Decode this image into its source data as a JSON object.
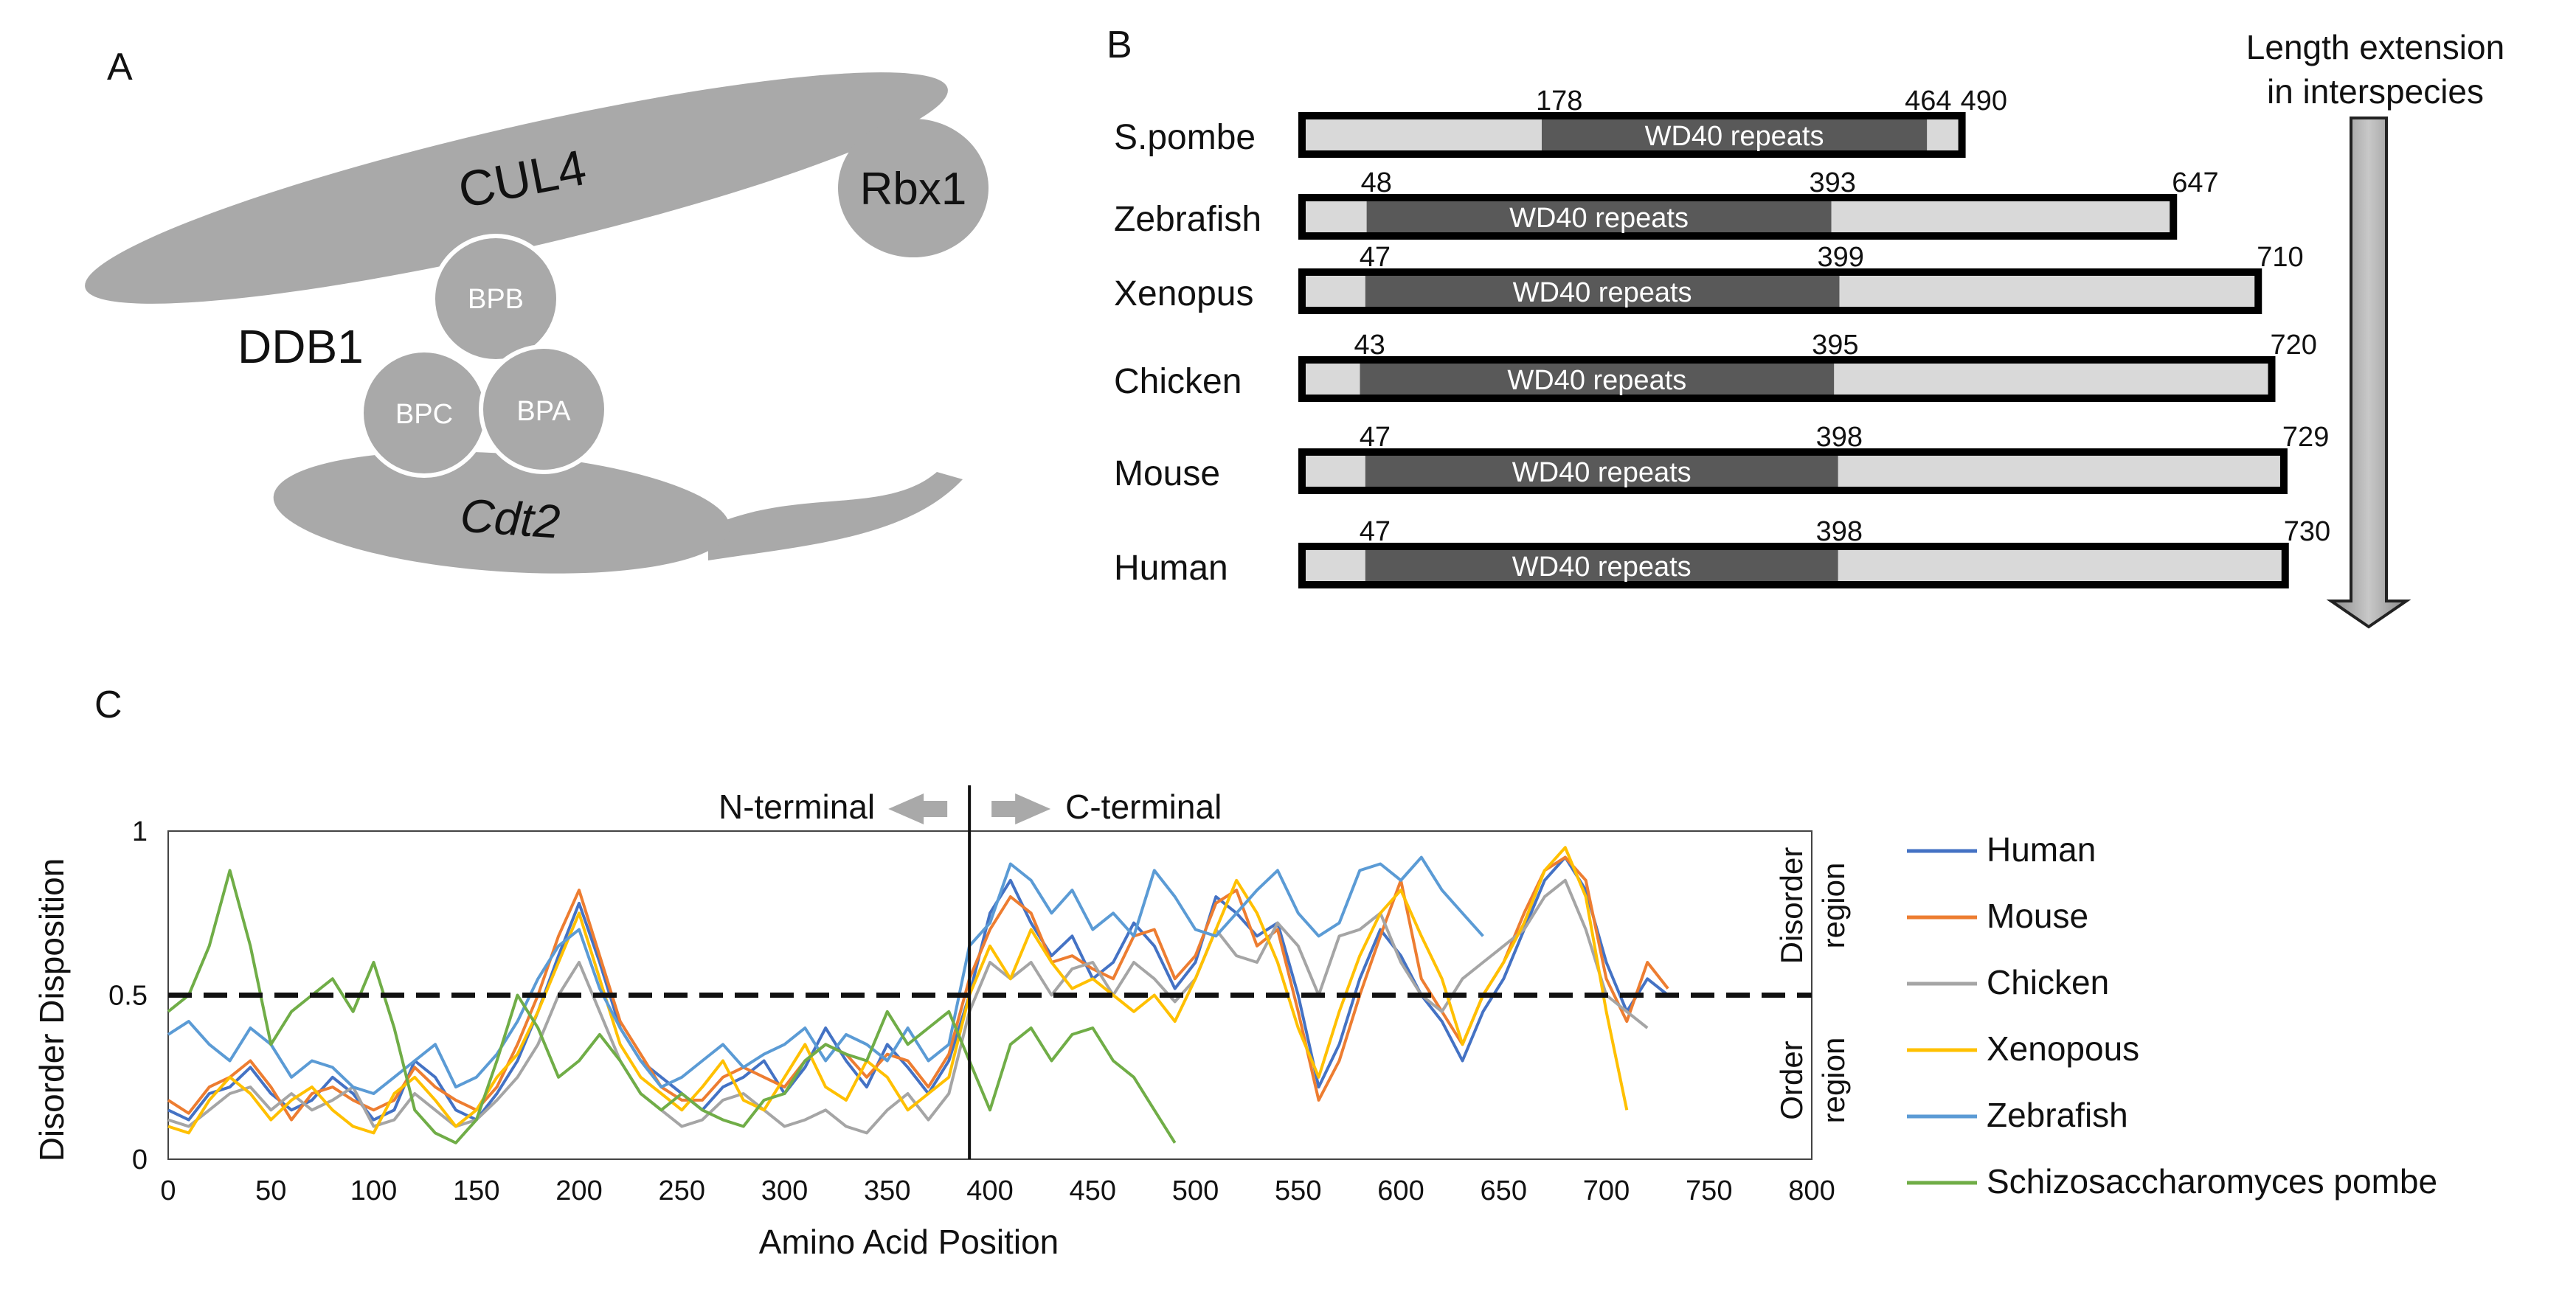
{
  "panels": {
    "a": {
      "letter": "A",
      "labels": {
        "cul4": "CUL4",
        "rbx1": "Rbx1",
        "ddb1": "DDB1",
        "bpb": "BPB",
        "bpc": "BPC",
        "bpa": "BPA",
        "cdt2": "Cdt2"
      }
    },
    "b": {
      "letter": "B",
      "domain_label": "WD40 repeats",
      "arrow_label_1": "Length extension",
      "arrow_label_2": "in interspecies",
      "species": [
        {
          "name": "S.pombe",
          "start": "178",
          "end": "464",
          "length": "490",
          "start_v": 178,
          "end_v": 464,
          "len_v": 490
        },
        {
          "name": "Zebrafish",
          "start": "48",
          "end": "393",
          "length": "647",
          "start_v": 48,
          "end_v": 393,
          "len_v": 647
        },
        {
          "name": "Xenopus",
          "start": "47",
          "end": "399",
          "length": "710",
          "start_v": 47,
          "end_v": 399,
          "len_v": 710
        },
        {
          "name": "Chicken",
          "start": "43",
          "end": "395",
          "length": "720",
          "start_v": 43,
          "end_v": 395,
          "len_v": 720
        },
        {
          "name": "Mouse",
          "start": "47",
          "end": "398",
          "length": "729",
          "start_v": 47,
          "end_v": 398,
          "len_v": 729
        },
        {
          "name": "Human",
          "start": "47",
          "end": "398",
          "length": "730",
          "start_v": 47,
          "end_v": 398,
          "len_v": 730
        }
      ]
    },
    "c": {
      "letter": "C"
    }
  },
  "chart_data": {
    "type": "line",
    "title": "",
    "xlabel": "Amino Acid Position",
    "ylabel": "Disorder Disposition",
    "xlim": [
      0,
      800
    ],
    "ylim": [
      0,
      1
    ],
    "xticks": [
      "0",
      "50",
      "100",
      "150",
      "200",
      "250",
      "300",
      "350",
      "400",
      "450",
      "500",
      "550",
      "600",
      "650",
      "700",
      "750",
      "800"
    ],
    "yticks": [
      "0",
      "0.5",
      "1"
    ],
    "threshold": 0.5,
    "divider_x": 390,
    "annotations": {
      "n_terminal": "N-terminal",
      "c_terminal": "C-terminal",
      "disorder_region_1": "Disorder",
      "disorder_region_2": "region",
      "order_region_1": "Order",
      "order_region_2": "region"
    },
    "series": [
      {
        "name": "Human",
        "color": "#4472C4",
        "x": [
          0,
          10,
          20,
          30,
          40,
          50,
          60,
          70,
          80,
          90,
          100,
          110,
          120,
          130,
          140,
          150,
          160,
          170,
          180,
          190,
          200,
          210,
          220,
          230,
          240,
          250,
          260,
          270,
          280,
          290,
          300,
          310,
          320,
          330,
          340,
          350,
          360,
          370,
          380,
          390,
          400,
          410,
          420,
          430,
          440,
          450,
          460,
          470,
          480,
          490,
          500,
          510,
          520,
          530,
          540,
          550,
          560,
          570,
          580,
          590,
          600,
          610,
          620,
          630,
          640,
          650,
          660,
          670,
          680,
          690,
          700,
          710,
          720,
          730
        ],
        "y": [
          0.15,
          0.12,
          0.2,
          0.22,
          0.28,
          0.2,
          0.15,
          0.18,
          0.25,
          0.2,
          0.12,
          0.15,
          0.3,
          0.25,
          0.15,
          0.12,
          0.2,
          0.3,
          0.45,
          0.62,
          0.78,
          0.6,
          0.4,
          0.3,
          0.25,
          0.2,
          0.15,
          0.22,
          0.25,
          0.3,
          0.2,
          0.28,
          0.4,
          0.3,
          0.22,
          0.35,
          0.28,
          0.2,
          0.3,
          0.5,
          0.75,
          0.85,
          0.72,
          0.62,
          0.68,
          0.55,
          0.6,
          0.72,
          0.65,
          0.52,
          0.6,
          0.8,
          0.75,
          0.68,
          0.72,
          0.5,
          0.22,
          0.35,
          0.55,
          0.7,
          0.62,
          0.5,
          0.42,
          0.3,
          0.45,
          0.55,
          0.7,
          0.85,
          0.92,
          0.82,
          0.6,
          0.45,
          0.55,
          0.5
        ]
      },
      {
        "name": "Mouse",
        "color": "#ED7D31",
        "x": [
          0,
          10,
          20,
          30,
          40,
          50,
          60,
          70,
          80,
          90,
          100,
          110,
          120,
          130,
          140,
          150,
          160,
          170,
          180,
          190,
          200,
          210,
          220,
          230,
          240,
          250,
          260,
          270,
          280,
          290,
          300,
          310,
          320,
          330,
          340,
          350,
          360,
          370,
          380,
          390,
          400,
          410,
          420,
          430,
          440,
          450,
          460,
          470,
          480,
          490,
          500,
          510,
          520,
          530,
          540,
          550,
          560,
          570,
          580,
          590,
          600,
          610,
          620,
          630,
          640,
          650,
          660,
          670,
          680,
          690,
          700,
          710,
          720,
          730
        ],
        "y": [
          0.18,
          0.14,
          0.22,
          0.25,
          0.3,
          0.22,
          0.12,
          0.2,
          0.22,
          0.18,
          0.15,
          0.18,
          0.28,
          0.22,
          0.18,
          0.15,
          0.22,
          0.35,
          0.5,
          0.68,
          0.82,
          0.62,
          0.42,
          0.32,
          0.22,
          0.18,
          0.18,
          0.25,
          0.28,
          0.25,
          0.22,
          0.3,
          0.35,
          0.32,
          0.25,
          0.32,
          0.3,
          0.22,
          0.32,
          0.55,
          0.7,
          0.8,
          0.75,
          0.6,
          0.62,
          0.58,
          0.55,
          0.68,
          0.7,
          0.55,
          0.62,
          0.78,
          0.82,
          0.65,
          0.7,
          0.45,
          0.18,
          0.3,
          0.5,
          0.68,
          0.85,
          0.55,
          0.45,
          0.35,
          0.5,
          0.6,
          0.75,
          0.88,
          0.92,
          0.85,
          0.55,
          0.42,
          0.6,
          0.52
        ]
      },
      {
        "name": "Chicken",
        "color": "#A5A5A5",
        "x": [
          0,
          10,
          20,
          30,
          40,
          50,
          60,
          70,
          80,
          90,
          100,
          110,
          120,
          130,
          140,
          150,
          160,
          170,
          180,
          190,
          200,
          210,
          220,
          230,
          240,
          250,
          260,
          270,
          280,
          290,
          300,
          310,
          320,
          330,
          340,
          350,
          360,
          370,
          380,
          390,
          400,
          410,
          420,
          430,
          440,
          450,
          460,
          470,
          480,
          490,
          500,
          510,
          520,
          530,
          540,
          550,
          560,
          570,
          580,
          590,
          600,
          610,
          620,
          630,
          640,
          650,
          660,
          670,
          680,
          690,
          700,
          710,
          720
        ],
        "y": [
          0.12,
          0.1,
          0.15,
          0.2,
          0.22,
          0.15,
          0.2,
          0.15,
          0.18,
          0.22,
          0.1,
          0.12,
          0.2,
          0.15,
          0.1,
          0.12,
          0.18,
          0.25,
          0.35,
          0.5,
          0.6,
          0.45,
          0.3,
          0.2,
          0.15,
          0.1,
          0.12,
          0.18,
          0.2,
          0.15,
          0.1,
          0.12,
          0.15,
          0.1,
          0.08,
          0.15,
          0.2,
          0.12,
          0.2,
          0.45,
          0.6,
          0.55,
          0.6,
          0.5,
          0.58,
          0.6,
          0.5,
          0.6,
          0.55,
          0.48,
          0.55,
          0.7,
          0.62,
          0.6,
          0.72,
          0.65,
          0.5,
          0.68,
          0.7,
          0.75,
          0.6,
          0.5,
          0.45,
          0.55,
          0.6,
          0.65,
          0.7,
          0.8,
          0.85,
          0.7,
          0.5,
          0.45,
          0.4
        ]
      },
      {
        "name": "Xenopous",
        "color": "#FFC000",
        "x": [
          0,
          10,
          20,
          30,
          40,
          50,
          60,
          70,
          80,
          90,
          100,
          110,
          120,
          130,
          140,
          150,
          160,
          170,
          180,
          190,
          200,
          210,
          220,
          230,
          240,
          250,
          260,
          270,
          280,
          290,
          300,
          310,
          320,
          330,
          340,
          350,
          360,
          370,
          380,
          390,
          400,
          410,
          420,
          430,
          440,
          450,
          460,
          470,
          480,
          490,
          500,
          510,
          520,
          530,
          540,
          550,
          560,
          570,
          580,
          590,
          600,
          610,
          620,
          630,
          640,
          650,
          660,
          670,
          680,
          690,
          700,
          710
        ],
        "y": [
          0.1,
          0.08,
          0.18,
          0.25,
          0.2,
          0.12,
          0.18,
          0.22,
          0.15,
          0.1,
          0.08,
          0.2,
          0.25,
          0.18,
          0.1,
          0.15,
          0.25,
          0.32,
          0.45,
          0.6,
          0.75,
          0.55,
          0.35,
          0.25,
          0.2,
          0.15,
          0.22,
          0.3,
          0.18,
          0.15,
          0.25,
          0.35,
          0.22,
          0.18,
          0.3,
          0.25,
          0.15,
          0.2,
          0.25,
          0.5,
          0.65,
          0.55,
          0.7,
          0.6,
          0.52,
          0.55,
          0.5,
          0.45,
          0.5,
          0.42,
          0.55,
          0.7,
          0.85,
          0.75,
          0.6,
          0.4,
          0.25,
          0.45,
          0.62,
          0.75,
          0.82,
          0.68,
          0.55,
          0.35,
          0.5,
          0.6,
          0.72,
          0.88,
          0.95,
          0.8,
          0.45,
          0.15
        ]
      },
      {
        "name": "Zebrafish",
        "color": "#5B9BD5",
        "x": [
          0,
          10,
          20,
          30,
          40,
          50,
          60,
          70,
          80,
          90,
          100,
          110,
          120,
          130,
          140,
          150,
          160,
          170,
          180,
          190,
          200,
          210,
          220,
          230,
          240,
          250,
          260,
          270,
          280,
          290,
          300,
          310,
          320,
          330,
          340,
          350,
          360,
          370,
          380,
          390,
          400,
          410,
          420,
          430,
          440,
          450,
          460,
          470,
          480,
          490,
          500,
          510,
          520,
          530,
          540,
          550,
          560,
          570,
          580,
          590,
          600,
          610,
          620,
          630,
          640
        ],
        "y": [
          0.38,
          0.42,
          0.35,
          0.3,
          0.4,
          0.35,
          0.25,
          0.3,
          0.28,
          0.22,
          0.2,
          0.25,
          0.3,
          0.35,
          0.22,
          0.25,
          0.32,
          0.42,
          0.55,
          0.65,
          0.7,
          0.52,
          0.4,
          0.3,
          0.22,
          0.25,
          0.3,
          0.35,
          0.28,
          0.32,
          0.35,
          0.4,
          0.3,
          0.38,
          0.35,
          0.3,
          0.4,
          0.3,
          0.35,
          0.65,
          0.72,
          0.9,
          0.85,
          0.75,
          0.82,
          0.7,
          0.75,
          0.68,
          0.88,
          0.8,
          0.7,
          0.68,
          0.75,
          0.82,
          0.88,
          0.75,
          0.68,
          0.72,
          0.88,
          0.9,
          0.85,
          0.92,
          0.82,
          0.75,
          0.68
        ]
      },
      {
        "name": "Schizosaccharomyces pombe",
        "color": "#70AD47",
        "x": [
          0,
          10,
          20,
          30,
          40,
          50,
          60,
          70,
          80,
          90,
          100,
          110,
          120,
          130,
          140,
          150,
          160,
          170,
          180,
          190,
          200,
          210,
          220,
          230,
          240,
          250,
          260,
          270,
          280,
          290,
          300,
          310,
          320,
          330,
          340,
          350,
          360,
          370,
          380,
          390,
          400,
          410,
          420,
          430,
          440,
          450,
          460,
          470,
          480,
          490
        ],
        "y": [
          0.45,
          0.5,
          0.65,
          0.88,
          0.65,
          0.35,
          0.45,
          0.5,
          0.55,
          0.45,
          0.6,
          0.4,
          0.15,
          0.08,
          0.05,
          0.12,
          0.3,
          0.5,
          0.4,
          0.25,
          0.3,
          0.38,
          0.3,
          0.2,
          0.15,
          0.2,
          0.15,
          0.12,
          0.1,
          0.18,
          0.2,
          0.3,
          0.35,
          0.32,
          0.3,
          0.45,
          0.35,
          0.4,
          0.45,
          0.3,
          0.15,
          0.35,
          0.4,
          0.3,
          0.38,
          0.4,
          0.3,
          0.25,
          0.15,
          0.05
        ]
      }
    ]
  }
}
